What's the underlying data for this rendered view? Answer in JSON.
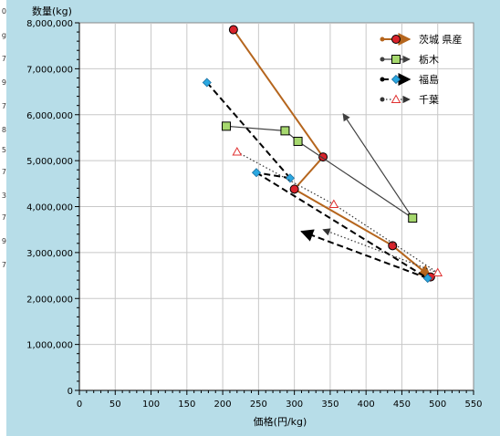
{
  "left_strip": {
    "cells": [
      "0",
      "g",
      "7",
      "9",
      "7",
      "8",
      "5",
      "7",
      "3",
      "7",
      "9",
      "7"
    ]
  },
  "chart_data": {
    "type": "line",
    "title": "",
    "ylabel": "数量(kg)",
    "xlabel": "価格(円/kg)",
    "xlim": [
      0,
      550
    ],
    "ylim": [
      0,
      8000000
    ],
    "x_ticks": [
      0,
      50,
      100,
      150,
      200,
      250,
      300,
      350,
      400,
      450,
      500,
      550
    ],
    "x_tick_labels": [
      "0",
      "50",
      "100",
      "150",
      "200",
      "250",
      "300",
      "350",
      "400",
      "450",
      "500",
      "550"
    ],
    "y_ticks": [
      0,
      1000000,
      2000000,
      3000000,
      4000000,
      5000000,
      6000000,
      7000000,
      8000000
    ],
    "y_tick_labels": [
      "0",
      "1,000,000",
      "2,000,000",
      "3,000,000",
      "4,000,000",
      "5,000,000",
      "6,000,000",
      "7,000,000",
      "8,000,000"
    ],
    "grid": true,
    "legend_position": "top-right",
    "series": [
      {
        "name": "茨城 県産",
        "color": "#b5651d",
        "marker": "circle",
        "marker_fill": "#d9232b",
        "line_style": "solid",
        "line_width": 2,
        "points": [
          {
            "x": 215,
            "y": 7850000
          },
          {
            "x": 340,
            "y": 5080000
          },
          {
            "x": 300,
            "y": 4380000
          },
          {
            "x": 437,
            "y": 3150000
          },
          {
            "x": 490,
            "y": 2470000
          }
        ]
      },
      {
        "name": "栃木",
        "color": "#404040",
        "marker": "square",
        "marker_fill": "#a6d86e",
        "line_style": "solid",
        "line_width": 1.2,
        "points": [
          {
            "x": 205,
            "y": 5750000
          },
          {
            "x": 287,
            "y": 5650000
          },
          {
            "x": 305,
            "y": 5420000
          },
          {
            "x": 465,
            "y": 3750000
          },
          {
            "x": 368,
            "y": 6020000
          }
        ]
      },
      {
        "name": "福島",
        "color": "#000000",
        "marker": "diamond",
        "marker_fill": "#2aa7e0",
        "line_style": "dashed",
        "line_width": 2,
        "points": [
          {
            "x": 178,
            "y": 6700000
          },
          {
            "x": 294,
            "y": 4620000
          },
          {
            "x": 247,
            "y": 4740000
          },
          {
            "x": 486,
            "y": 2440000
          },
          {
            "x": 310,
            "y": 3460000
          }
        ]
      },
      {
        "name": "千葉",
        "color": "#333333",
        "marker": "triangle",
        "marker_fill": "#ffffff",
        "marker_stroke": "#e03030",
        "line_style": "dotted",
        "line_width": 1.2,
        "points": [
          {
            "x": 220,
            "y": 5190000
          },
          {
            "x": 355,
            "y": 4050000
          },
          {
            "x": 500,
            "y": 2560000
          },
          {
            "x": 340,
            "y": 3500000
          }
        ]
      }
    ]
  }
}
